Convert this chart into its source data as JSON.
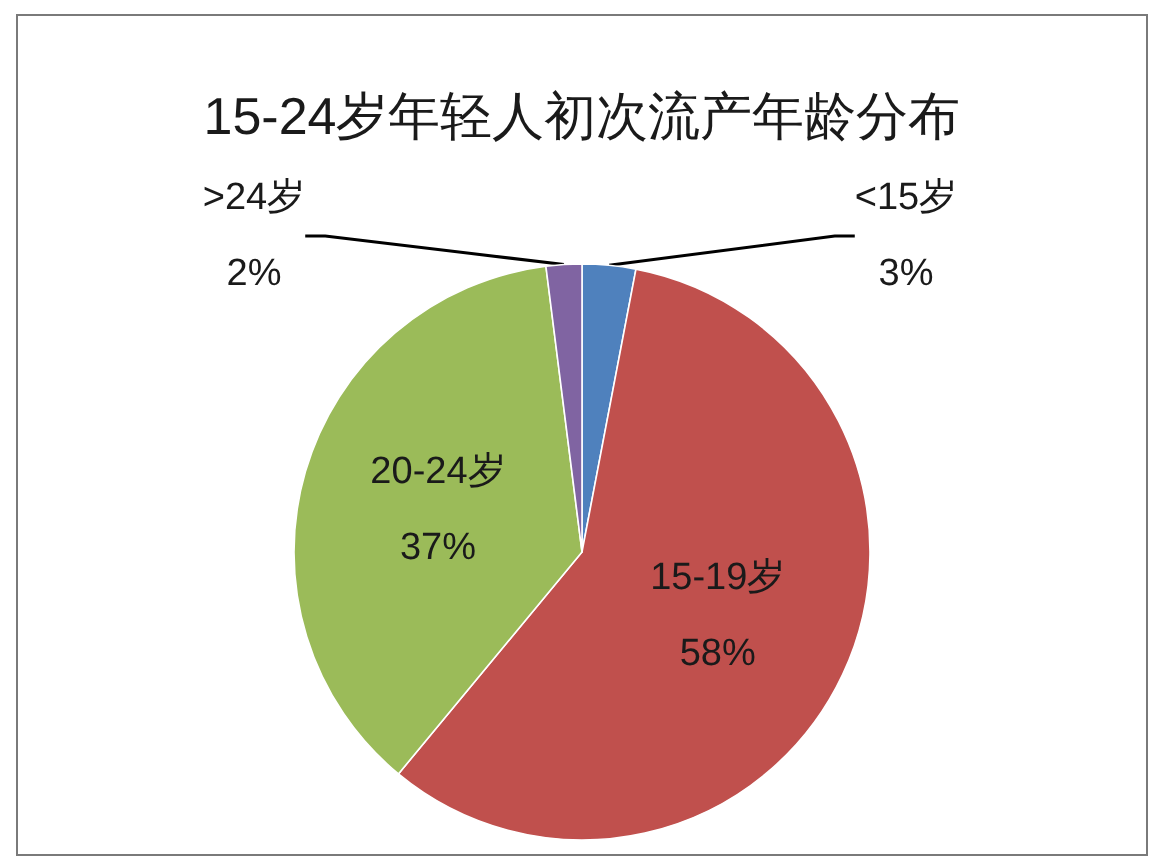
{
  "chart_data": {
    "type": "pie",
    "title": "15-24岁年轻人初次流产年龄分布",
    "categories": [
      "<15岁",
      "15-19岁",
      "20-24岁",
      ">24岁"
    ],
    "values": [
      3,
      58,
      37,
      2
    ],
    "colors": [
      "#4f81bd",
      "#c0504d",
      "#9bbb59",
      "#8064a2"
    ],
    "value_labels": [
      "3%",
      "58%",
      "37%",
      "2%"
    ]
  }
}
